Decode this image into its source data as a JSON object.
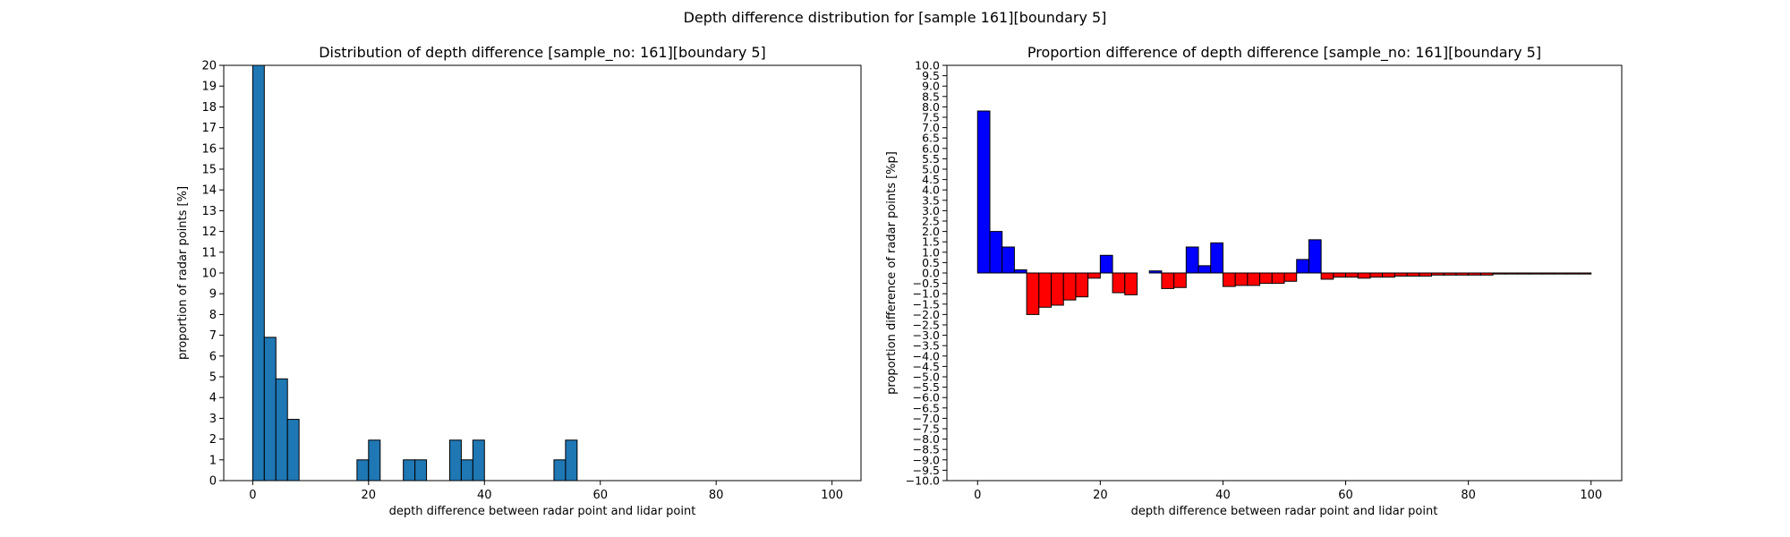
{
  "figure_title": "Depth difference distribution for [sample 161][boundary 5]",
  "colors": {
    "hist_fill": "#1f77b4",
    "positive": "#0000ff",
    "negative": "#ff0000",
    "edge": "#000000"
  },
  "chart_data": [
    {
      "type": "bar",
      "title": "Distribution of depth difference [sample_no: 161][boundary 5]",
      "xlabel": "depth difference between radar point and lidar point",
      "ylabel": "proportion of radar points [%]",
      "xlim": [
        -5,
        105
      ],
      "ylim": [
        0,
        20
      ],
      "bin_width": 2,
      "xticks": [
        "0",
        "20",
        "40",
        "60",
        "80",
        "100"
      ],
      "xtick_values": [
        0,
        20,
        40,
        60,
        80,
        100
      ],
      "yticks": [
        "0",
        "1",
        "2",
        "3",
        "4",
        "5",
        "6",
        "7",
        "8",
        "9",
        "10",
        "11",
        "12",
        "13",
        "14",
        "15",
        "16",
        "17",
        "18",
        "19",
        "20"
      ],
      "ytick_values": [
        0,
        1,
        2,
        3,
        4,
        5,
        6,
        7,
        8,
        9,
        10,
        11,
        12,
        13,
        14,
        15,
        16,
        17,
        18,
        19,
        20
      ],
      "x": [
        0,
        2,
        4,
        6,
        18,
        20,
        26,
        28,
        34,
        36,
        38,
        52,
        54
      ],
      "values": [
        20,
        6.9,
        4.9,
        2.95,
        1,
        1.95,
        1,
        1,
        1.95,
        1,
        1.95,
        1,
        1.95
      ]
    },
    {
      "type": "bar",
      "title": "Proportion difference of depth difference [sample_no: 161][boundary 5]",
      "xlabel": "depth difference between radar point and lidar point",
      "ylabel": "proportion difference of radar points [%p]",
      "xlim": [
        -5,
        105
      ],
      "ylim": [
        -10,
        10
      ],
      "bin_width": 2,
      "xticks": [
        "0",
        "20",
        "40",
        "60",
        "80",
        "100"
      ],
      "xtick_values": [
        0,
        20,
        40,
        60,
        80,
        100
      ],
      "yticks": [
        "10.0",
        "9.5",
        "9.0",
        "8.5",
        "8.0",
        "7.5",
        "7.0",
        "6.5",
        "6.0",
        "5.5",
        "5.0",
        "4.5",
        "4.0",
        "3.5",
        "3.0",
        "2.5",
        "2.0",
        "1.5",
        "1.0",
        "0.5",
        "0.0",
        "−0.5",
        "−1.0",
        "−1.5",
        "−2.0",
        "−2.5",
        "−3.0",
        "−3.5",
        "−4.0",
        "−4.5",
        "−5.0",
        "−5.5",
        "−6.0",
        "−6.5",
        "−7.0",
        "−7.5",
        "−8.0",
        "−8.5",
        "−9.0",
        "−9.5",
        "−10.0"
      ],
      "ytick_values": [
        10,
        9.5,
        9,
        8.5,
        8,
        7.5,
        7,
        6.5,
        6,
        5.5,
        5,
        4.5,
        4,
        3.5,
        3,
        2.5,
        2,
        1.5,
        1,
        0.5,
        0,
        -0.5,
        -1,
        -1.5,
        -2,
        -2.5,
        -3,
        -3.5,
        -4,
        -4.5,
        -5,
        -5.5,
        -6,
        -6.5,
        -7,
        -7.5,
        -8,
        -8.5,
        -9,
        -9.5,
        -10
      ],
      "x": [
        0,
        2,
        4,
        6,
        8,
        10,
        12,
        14,
        16,
        18,
        20,
        22,
        24,
        26,
        28,
        30,
        32,
        34,
        36,
        38,
        40,
        42,
        44,
        46,
        48,
        50,
        52,
        54,
        56,
        58,
        60,
        62,
        64,
        66,
        68,
        70,
        72,
        74,
        76,
        78,
        80,
        82,
        84,
        86,
        88,
        90,
        92,
        94,
        96,
        98
      ],
      "values": [
        7.8,
        2.0,
        1.25,
        0.15,
        -2.0,
        -1.65,
        -1.55,
        -1.3,
        -1.15,
        -0.25,
        0.85,
        -0.95,
        -1.05,
        0,
        0.1,
        -0.75,
        -0.7,
        1.25,
        0.35,
        1.45,
        -0.65,
        -0.6,
        -0.6,
        -0.5,
        -0.5,
        -0.4,
        0.65,
        1.6,
        -0.3,
        -0.2,
        -0.2,
        -0.25,
        -0.2,
        -0.2,
        -0.15,
        -0.15,
        -0.15,
        -0.1,
        -0.1,
        -0.1,
        -0.1,
        -0.1,
        -0.05,
        -0.05,
        -0.05,
        -0.05,
        -0.05,
        -0.05,
        -0.05,
        -0.05
      ]
    }
  ]
}
